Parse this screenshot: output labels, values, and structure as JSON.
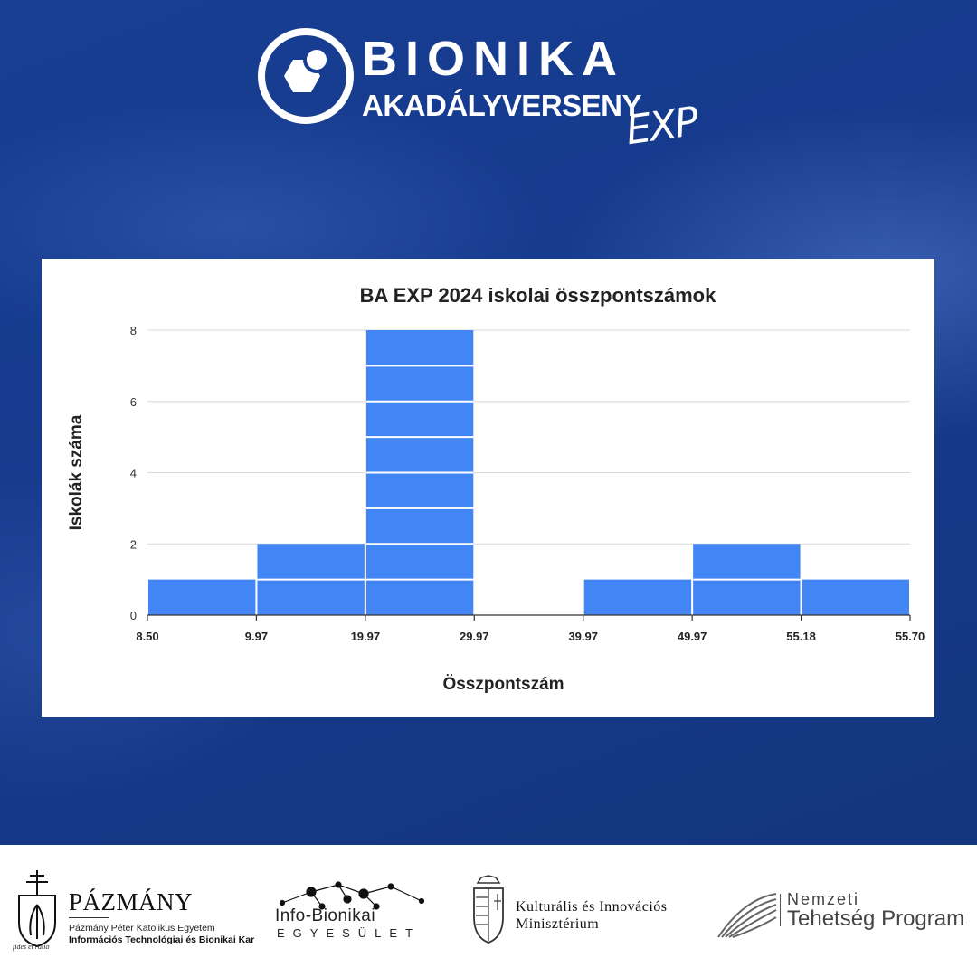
{
  "header": {
    "logo_word1": "BIONIKA",
    "logo_word2": "AKADÁLYVERSENY",
    "logo_word3": "EXP",
    "logo_icon": "hexagon-circle-icon"
  },
  "colors": {
    "background": "#163a8c",
    "bar": "#4285f4",
    "grid": "#d9d9d9"
  },
  "chart_data": {
    "type": "bar",
    "title": "BA EXP 2024 iskolai összpontszámok",
    "xlabel": "Összpontszám",
    "ylabel": "Iskolák száma",
    "bin_edges": [
      "8.50",
      "9.97",
      "19.97",
      "29.97",
      "39.97",
      "49.97",
      "55.18",
      "55.70"
    ],
    "values": [
      1,
      2,
      8,
      0,
      1,
      2,
      1
    ],
    "yticks": [
      "0",
      "2",
      "4",
      "6",
      "8"
    ],
    "ylim": [
      0,
      8
    ],
    "grid": true,
    "legend": "none"
  },
  "footer": {
    "pazmany": {
      "title": "PÁZMÁNY",
      "sub1": "Pázmány Péter Katolikus Egyetem",
      "sub2": "Információs Technológiai és Bionikai Kar",
      "motto": "fides et ratio",
      "icon": "crest-icon"
    },
    "infobionikai": {
      "name": "Info-Bionikai",
      "sub": "EGYESÜLET",
      "icon": "network-icon"
    },
    "ministry": {
      "line1": "Kulturális és Innovációs",
      "line2": "Minisztérium",
      "icon": "coat-of-arms-icon"
    },
    "ntp": {
      "line1": "Nemzeti",
      "line2": "Tehetség Program",
      "icon": "swoosh-icon"
    }
  }
}
